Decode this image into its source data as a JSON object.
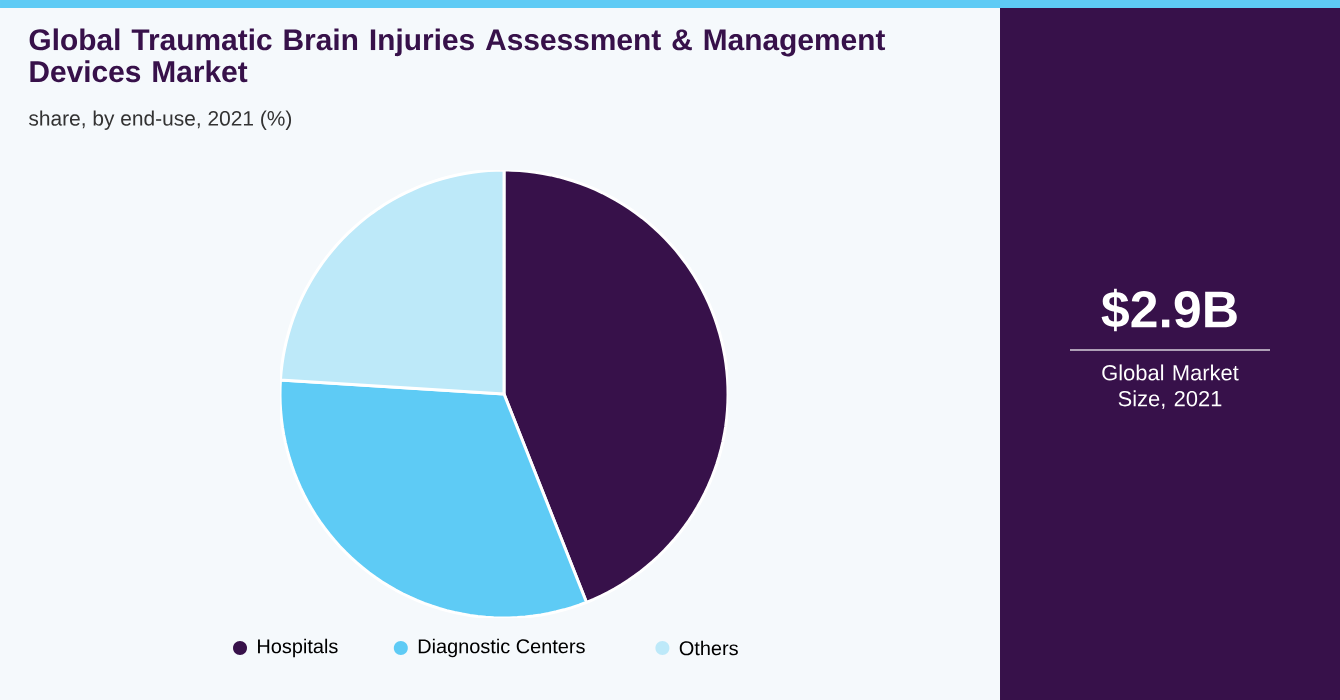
{
  "chart_data": {
    "type": "pie",
    "title": "Global Traumatic Brain Injuries Assessment & Management Devices Market",
    "subtitle": "share, by end-use, 2021 (%)",
    "categories": [
      "Hospitals",
      "Diagnostic Centers",
      "Others"
    ],
    "values": [
      44,
      32,
      24
    ],
    "colors": [
      "#37114a",
      "#5ecbf5",
      "#bde9f9"
    ],
    "legend": "bottom",
    "annotations": [
      "$2.9B",
      "Global Market Size, 2021"
    ]
  }
}
